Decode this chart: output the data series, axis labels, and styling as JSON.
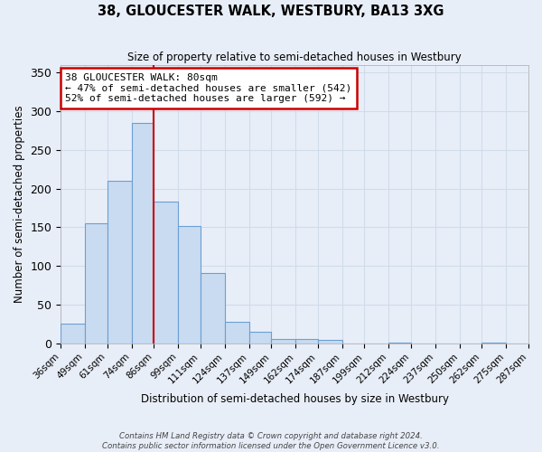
{
  "title": "38, GLOUCESTER WALK, WESTBURY, BA13 3XG",
  "subtitle": "Size of property relative to semi-detached houses in Westbury",
  "xlabel": "Distribution of semi-detached houses by size in Westbury",
  "ylabel": "Number of semi-detached properties",
  "bins": [
    36,
    49,
    61,
    74,
    86,
    99,
    111,
    124,
    137,
    149,
    162,
    174,
    187,
    199,
    212,
    224,
    237,
    250,
    262,
    275,
    287
  ],
  "bin_labels": [
    "36sqm",
    "49sqm",
    "61sqm",
    "74sqm",
    "86sqm",
    "99sqm",
    "111sqm",
    "124sqm",
    "137sqm",
    "149sqm",
    "162sqm",
    "174sqm",
    "187sqm",
    "199sqm",
    "212sqm",
    "224sqm",
    "237sqm",
    "250sqm",
    "262sqm",
    "275sqm",
    "287sqm"
  ],
  "counts": [
    25,
    155,
    210,
    285,
    183,
    152,
    91,
    28,
    15,
    5,
    5,
    4,
    0,
    0,
    1,
    0,
    0,
    0,
    1,
    0,
    0
  ],
  "bar_color": "#c9dbf0",
  "bar_edge_color": "#6b9fd4",
  "red_line_x": 86,
  "annotation_title": "38 GLOUCESTER WALK: 80sqm",
  "annotation_line1": "← 47% of semi-detached houses are smaller (542)",
  "annotation_line2": "52% of semi-detached houses are larger (592) →",
  "annotation_box_color": "#ffffff",
  "annotation_box_edge": "#cc0000",
  "ylim": [
    0,
    360
  ],
  "yticks": [
    0,
    50,
    100,
    150,
    200,
    250,
    300,
    350
  ],
  "grid_color": "#d0dcea",
  "bg_color": "#e8eef8",
  "footer1": "Contains HM Land Registry data © Crown copyright and database right 2024.",
  "footer2": "Contains public sector information licensed under the Open Government Licence v3.0."
}
